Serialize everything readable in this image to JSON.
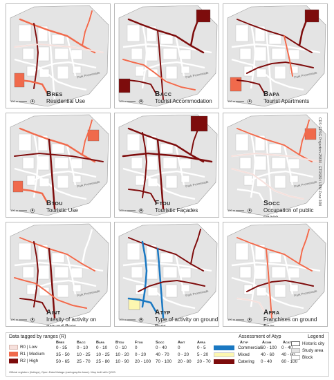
{
  "panels": [
    {
      "code": "Bres",
      "label": "Residential Use"
    },
    {
      "code": "Bacc",
      "label": "Tourist Accommodation"
    },
    {
      "code": "Bapa",
      "label": "Tourist Apartments"
    },
    {
      "code": "Btou",
      "label": "Touristic Use"
    },
    {
      "code": "Ftou",
      "label": "Touristic Façades"
    },
    {
      "code": "Socc",
      "label": "Occupation of public space"
    },
    {
      "code": "Aint",
      "label": "Intesity of activity on ground floor"
    },
    {
      "code": "Atyp",
      "label": "Type of activity on ground floor"
    },
    {
      "code": "Afra",
      "label": "Franchises on ground floor"
    }
  ],
  "map_labels": {
    "park": "Park Promenade",
    "scale": "100 m"
  },
  "crs": "CRS: EPSG Projection 25830 - ETRS89 / UTM Zone 30N",
  "colors": {
    "low": "#f6e0dc",
    "medium": "#f06a4c",
    "high": "#7d0c0c",
    "commercial": "#1a78c2",
    "mixed": "#fdf7b0",
    "catering": "#7d0c0c",
    "historic": "#ffffff",
    "study": "#e4e4e4",
    "block": "#ffffff"
  },
  "legend": {
    "ranges_title": "Data tagged by ranges (R)",
    "range_labels": [
      "R0 | Low",
      "R1 | Medium",
      "R2 | High"
    ],
    "columns": [
      "Bres",
      "Bacc",
      "Bapa",
      "Btou",
      "Ftou",
      "Socc",
      "Aint",
      "Afra"
    ],
    "rows": [
      [
        "0 - 35",
        "0 - 10",
        "0 - 10",
        "0 - 10",
        "0",
        "0 - 40",
        "0",
        "0 - 5"
      ],
      [
        "35 - 50",
        "10 - 25",
        "10 - 25",
        "10 - 20",
        "0 - 20",
        "40 - 70",
        "0 - 20",
        "5 - 20"
      ],
      [
        "50 - 65",
        "25 - 70",
        "25 - 80",
        "10 - 90",
        "20 - 100",
        "70 - 100",
        "20 - 80",
        "20 - 70"
      ]
    ],
    "assess_title": "Assessment of Atyp",
    "assess_col": "Atyp",
    "assess_labels": [
      "Commercial",
      "Mixed",
      "Catering"
    ],
    "acom_col": "Acom",
    "acat_col": "Acat",
    "acom": [
      "60 - 100",
      "40 - 60",
      "0 - 40"
    ],
    "acat": [
      "0 - 40",
      "40 - 60",
      "60 - 100"
    ],
    "legend_title": "Legend",
    "legend_items": [
      "Historic city",
      "Study area",
      "Block"
    ],
    "footnote": "Official registers (listings), Open Data Malaga (cartographic base). Map built with QGIS."
  }
}
